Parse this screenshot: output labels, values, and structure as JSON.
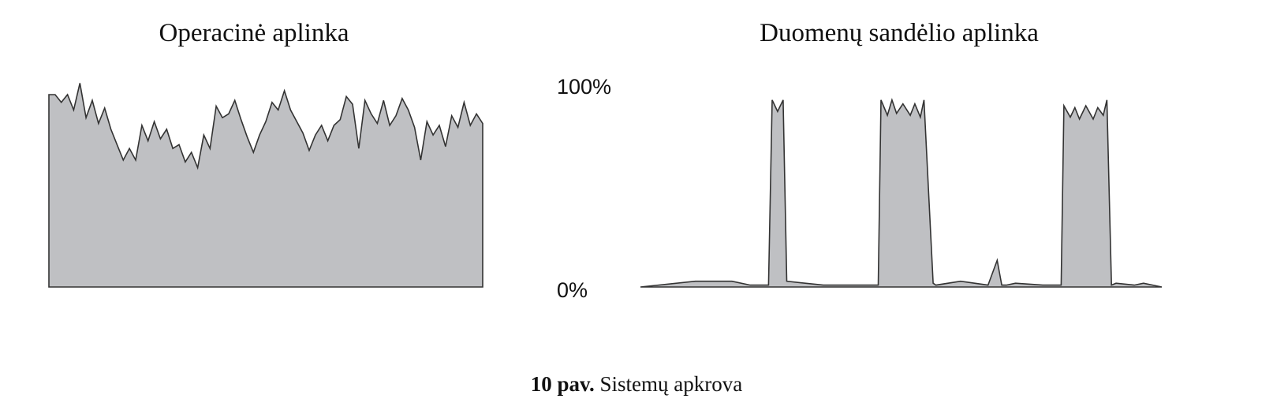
{
  "chart_data": [
    {
      "type": "area",
      "title": "Operacinė aplinka",
      "ylim": [
        0,
        100
      ],
      "fill": "#bfc0c3",
      "stroke": "#333333",
      "x": [
        0,
        1,
        2,
        3,
        4,
        5,
        6,
        7,
        8,
        9,
        10,
        11,
        12,
        13,
        14,
        15,
        16,
        17,
        18,
        19,
        20,
        21,
        22,
        23,
        24,
        25,
        26,
        27,
        28,
        29,
        30,
        31,
        32,
        33,
        34,
        35,
        36,
        37,
        38,
        39,
        40,
        41,
        42,
        43,
        44,
        45,
        46,
        47,
        48,
        49,
        50,
        51,
        52,
        53,
        54,
        55,
        56,
        57,
        58,
        59,
        60,
        61,
        62,
        63,
        64,
        65,
        66,
        67,
        68,
        69,
        70
      ],
      "values": [
        100,
        100,
        96,
        100,
        92,
        106,
        88,
        97,
        85,
        93,
        82,
        74,
        66,
        72,
        66,
        84,
        76,
        86,
        77,
        82,
        72,
        74,
        65,
        70,
        62,
        79,
        72,
        94,
        88,
        90,
        97,
        87,
        78,
        70,
        79,
        86,
        96,
        92,
        102,
        92,
        86,
        80,
        71,
        79,
        84,
        76,
        84,
        87,
        99,
        95,
        72,
        97,
        90,
        85,
        97,
        84,
        89,
        98,
        92,
        83,
        66,
        86,
        79,
        84,
        73,
        89,
        83,
        96,
        84,
        90,
        85
      ]
    },
    {
      "type": "area",
      "title": "Duomenų sandėlio aplinka",
      "ylim": [
        0,
        100
      ],
      "fill": "#bfc0c3",
      "stroke": "#333333",
      "x": [
        0,
        6,
        10,
        12,
        14,
        14.4,
        15,
        15.6,
        16,
        20,
        24,
        26,
        26.3,
        27,
        27.5,
        28,
        28.7,
        29.5,
        30,
        30.6,
        31,
        32,
        32.3,
        35,
        38,
        39,
        39.5,
        40,
        41,
        44,
        46,
        46.3,
        47,
        47.5,
        48,
        48.7,
        49.5,
        50,
        50.6,
        51,
        51.5,
        52,
        54,
        55,
        57
      ],
      "values": [
        0,
        3,
        3,
        1,
        1,
        98,
        92,
        98,
        3,
        1,
        1,
        1,
        98,
        90,
        98,
        91,
        96,
        90,
        96,
        89,
        98,
        2,
        1,
        3,
        1,
        14,
        1,
        1,
        2,
        1,
        1,
        95,
        89,
        94,
        88,
        95,
        88,
        94,
        90,
        98,
        1,
        2,
        1,
        2,
        0
      ],
      "yticks": [
        "100%",
        "0%"
      ]
    }
  ],
  "caption": {
    "number": "10 pav.",
    "text": " Sistemų apkrova"
  }
}
